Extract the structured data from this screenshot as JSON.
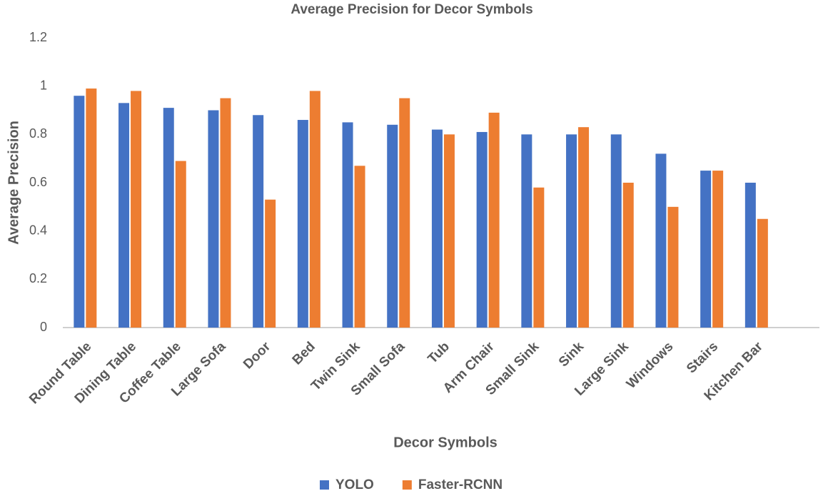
{
  "chart_data": {
    "type": "bar",
    "title": "Average Precision for Decor Symbols",
    "x_label": "Decor Symbols",
    "y_label": "Average Precision",
    "categories": [
      "Round Table",
      "Dining Table",
      "Coffee Table",
      "Large Sofa",
      "Door",
      "Bed",
      "Twin Sink",
      "Small Sofa",
      "Tub",
      "Arm Chair",
      "Small Sink",
      "Sink",
      "Large Sink",
      "Windows",
      "Stairs",
      "Kitchen Bar"
    ],
    "series": [
      {
        "name": "YOLO",
        "color": "#4472c4",
        "values": [
          0.96,
          0.93,
          0.91,
          0.9,
          0.88,
          0.86,
          0.85,
          0.84,
          0.82,
          0.81,
          0.8,
          0.8,
          0.8,
          0.72,
          0.65,
          0.6
        ]
      },
      {
        "name": "Faster-RCNN",
        "color": "#ed7d31",
        "values": [
          0.99,
          0.98,
          0.69,
          0.95,
          0.53,
          0.98,
          0.67,
          0.95,
          0.8,
          0.89,
          0.58,
          0.83,
          0.6,
          0.5,
          0.65,
          0.45
        ]
      }
    ],
    "ylim": [
      0,
      1.2
    ],
    "yticks": [
      0,
      0.2,
      0.4,
      0.6,
      0.8,
      1,
      1.2
    ],
    "grid": false,
    "legend": "bottom"
  }
}
